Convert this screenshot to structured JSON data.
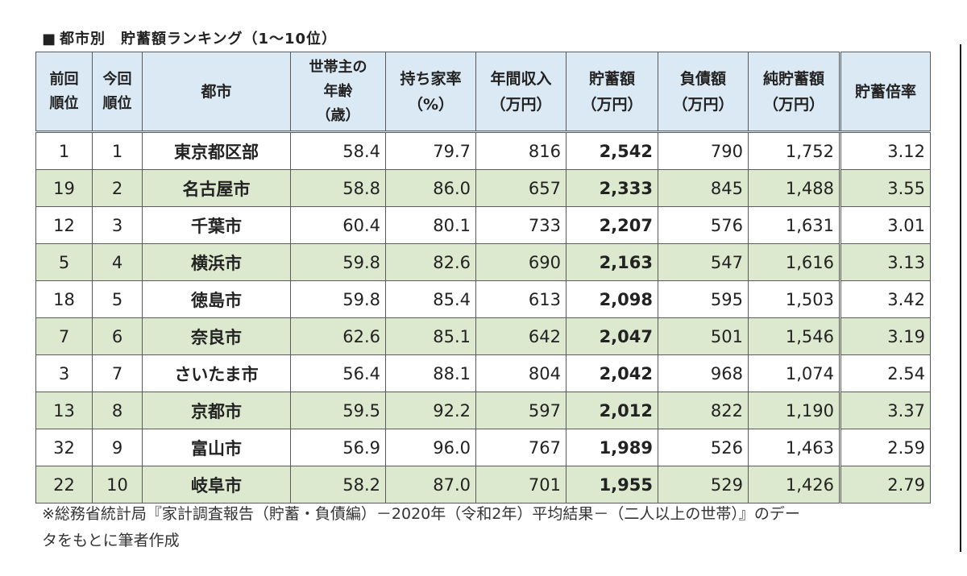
{
  "title": {
    "marker": "■",
    "text": "都市別　貯蓄額ランキング（1～10位）"
  },
  "headers": {
    "prev_rank": [
      "前回",
      "順位"
    ],
    "cur_rank": [
      "今回",
      "順位"
    ],
    "city": "都市",
    "age": [
      "世帯主の",
      "年齢",
      "（歳）"
    ],
    "home_ownership": [
      "持ち家率",
      "（%）"
    ],
    "income": [
      "年間収入",
      "（万円）"
    ],
    "savings": [
      "貯蓄額",
      "（万円）"
    ],
    "debt": [
      "負債額",
      "（万円）"
    ],
    "net_savings": [
      "純貯蓄額",
      "（万円）"
    ],
    "savings_ratio": "貯蓄倍率"
  },
  "rows": [
    {
      "prev": "1",
      "cur": "1",
      "city": "東京都区部",
      "age": "58.4",
      "own": "79.7",
      "income": "816",
      "savings": "2,542",
      "debt": "790",
      "net": "1,752",
      "ratio": "3.12"
    },
    {
      "prev": "19",
      "cur": "2",
      "city": "名古屋市",
      "age": "58.8",
      "own": "86.0",
      "income": "657",
      "savings": "2,333",
      "debt": "845",
      "net": "1,488",
      "ratio": "3.55"
    },
    {
      "prev": "12",
      "cur": "3",
      "city": "千葉市",
      "age": "60.4",
      "own": "80.1",
      "income": "733",
      "savings": "2,207",
      "debt": "576",
      "net": "1,631",
      "ratio": "3.01"
    },
    {
      "prev": "5",
      "cur": "4",
      "city": "横浜市",
      "age": "59.8",
      "own": "82.6",
      "income": "690",
      "savings": "2,163",
      "debt": "547",
      "net": "1,616",
      "ratio": "3.13"
    },
    {
      "prev": "18",
      "cur": "5",
      "city": "徳島市",
      "age": "59.8",
      "own": "85.4",
      "income": "613",
      "savings": "2,098",
      "debt": "595",
      "net": "1,503",
      "ratio": "3.42"
    },
    {
      "prev": "7",
      "cur": "6",
      "city": "奈良市",
      "age": "62.6",
      "own": "85.1",
      "income": "642",
      "savings": "2,047",
      "debt": "501",
      "net": "1,546",
      "ratio": "3.19"
    },
    {
      "prev": "3",
      "cur": "7",
      "city": "さいたま市",
      "age": "56.4",
      "own": "88.1",
      "income": "804",
      "savings": "2,042",
      "debt": "968",
      "net": "1,074",
      "ratio": "2.54"
    },
    {
      "prev": "13",
      "cur": "8",
      "city": "京都市",
      "age": "59.5",
      "own": "92.2",
      "income": "597",
      "savings": "2,012",
      "debt": "822",
      "net": "1,190",
      "ratio": "3.37"
    },
    {
      "prev": "32",
      "cur": "9",
      "city": "富山市",
      "age": "56.9",
      "own": "96.0",
      "income": "767",
      "savings": "1,989",
      "debt": "526",
      "net": "1,463",
      "ratio": "2.59"
    },
    {
      "prev": "22",
      "cur": "10",
      "city": "岐阜市",
      "age": "58.2",
      "own": "87.0",
      "income": "701",
      "savings": "1,955",
      "debt": "529",
      "net": "1,426",
      "ratio": "2.79"
    }
  ],
  "source": {
    "line1": "※総務省統計局『家計調査報告（貯蓄・負債編）－2020年（令和2年）平均結果－（二人以上の世帯）』のデー",
    "line2": "タをもとに筆者作成"
  },
  "colors": {
    "header_bg": "#dbe9f5",
    "alt_row_bg": "#dde9cf",
    "border": "#5a5a5a"
  }
}
